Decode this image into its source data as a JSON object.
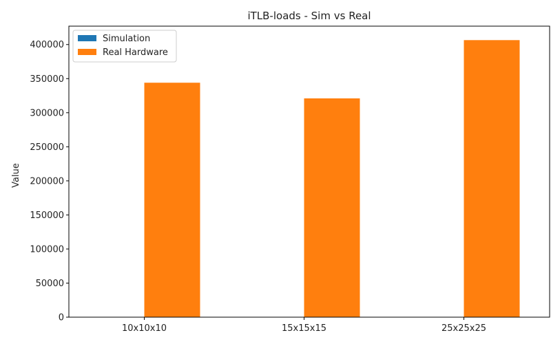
{
  "chart_data": {
    "type": "bar",
    "title": "iTLB-loads - Sim vs Real",
    "xlabel": "",
    "ylabel": "Value",
    "categories": [
      "10x10x10",
      "15x15x15",
      "25x25x25"
    ],
    "series": [
      {
        "name": "Simulation",
        "color": "#1f77b4",
        "values": [
          0,
          0,
          0
        ]
      },
      {
        "name": "Real Hardware",
        "color": "#ff7f0e",
        "values": [
          344000,
          321000,
          406500
        ]
      }
    ],
    "ylim": [
      0,
      427000
    ],
    "yticks": [
      0,
      50000,
      100000,
      150000,
      200000,
      250000,
      300000,
      350000,
      400000
    ],
    "ytick_labels": [
      "0",
      "50000",
      "100000",
      "150000",
      "200000",
      "250000",
      "300000",
      "350000",
      "400000"
    ],
    "legend_position": "top-left",
    "grid": false
  }
}
